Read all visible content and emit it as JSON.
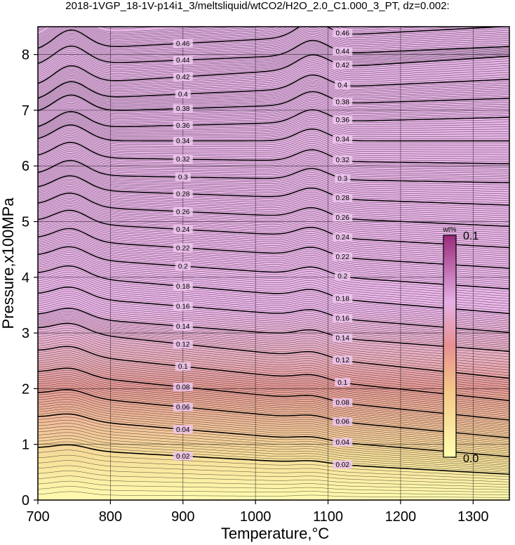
{
  "title": "2018-1VGP_18-1V-p14i1_3/meltsliquid/wtCO2/H2O_2.0_C1.000_3_PT, dz=0.002:",
  "chart_data": {
    "type": "heatmap",
    "xlabel": "Temperature,°C",
    "ylabel": "Pressure,x100MPa",
    "xlim": [
      700,
      1350
    ],
    "ylim": [
      0,
      8.5
    ],
    "xticks": [
      700,
      800,
      900,
      1000,
      1100,
      1200,
      1300
    ],
    "yticks": [
      0,
      1,
      2,
      3,
      4,
      5,
      6,
      7,
      8
    ],
    "grid": true,
    "contour_interval": 0.002,
    "major_contour_interval": 0.02,
    "colorbar": {
      "title": "wt%",
      "min": 0.0,
      "max": 0.1,
      "min_label": "0.0",
      "max_label": "0.1",
      "colors": [
        "#ffffb0",
        "#f5c888",
        "#e89090",
        "#e5b0e5",
        "#9a2a7a"
      ]
    },
    "contour_label_T": [
      900,
      1120
    ],
    "contours": [
      {
        "level": 0.02,
        "label": "0.02",
        "P_at_900": 0.79,
        "P_at_1120": 0.63
      },
      {
        "level": 0.04,
        "label": "0.04",
        "P_at_900": 1.27,
        "P_at_1120": 1.03
      },
      {
        "level": 0.06,
        "label": "0.06",
        "P_at_900": 1.67,
        "P_at_1120": 1.4
      },
      {
        "level": 0.08,
        "label": "0.08",
        "P_at_900": 2.03,
        "P_at_1120": 1.74
      },
      {
        "level": 0.1,
        "label": "0.1",
        "P_at_900": 2.4,
        "P_at_1120": 2.1
      },
      {
        "level": 0.12,
        "label": "0.12",
        "P_at_900": 2.8,
        "P_at_1120": 2.5
      },
      {
        "level": 0.14,
        "label": "0.14",
        "P_at_900": 3.12,
        "P_at_1120": 2.9
      },
      {
        "level": 0.16,
        "label": "0.16",
        "P_at_900": 3.48,
        "P_at_1120": 3.25
      },
      {
        "level": 0.18,
        "label": "0.18",
        "P_at_900": 3.84,
        "P_at_1120": 3.6
      },
      {
        "level": 0.2,
        "label": "0.2",
        "P_at_900": 4.2,
        "P_at_1120": 4.0
      },
      {
        "level": 0.22,
        "label": "0.22",
        "P_at_900": 4.53,
        "P_at_1120": 4.35
      },
      {
        "level": 0.24,
        "label": "0.24",
        "P_at_900": 4.86,
        "P_at_1120": 4.7
      },
      {
        "level": 0.26,
        "label": "0.26",
        "P_at_900": 5.18,
        "P_at_1120": 5.05
      },
      {
        "level": 0.28,
        "label": "0.28",
        "P_at_900": 5.5,
        "P_at_1120": 5.4
      },
      {
        "level": 0.3,
        "label": "0.3",
        "P_at_900": 5.8,
        "P_at_1120": 5.75
      },
      {
        "level": 0.32,
        "label": "0.32",
        "P_at_900": 6.12,
        "P_at_1120": 6.08
      },
      {
        "level": 0.34,
        "label": "0.34",
        "P_at_900": 6.45,
        "P_at_1120": 6.45
      },
      {
        "level": 0.36,
        "label": "0.36",
        "P_at_900": 6.73,
        "P_at_1120": 6.8
      },
      {
        "level": 0.38,
        "label": "0.38",
        "P_at_900": 7.03,
        "P_at_1120": 7.12
      },
      {
        "level": 0.4,
        "label": "0.4",
        "P_at_900": 7.29,
        "P_at_1120": 7.42
      },
      {
        "level": 0.42,
        "label": "0.42",
        "P_at_900": 7.6,
        "P_at_1120": 7.78
      },
      {
        "level": 0.44,
        "label": "0.44",
        "P_at_900": 7.9,
        "P_at_1120": 8.02
      },
      {
        "level": 0.46,
        "label": "0.46",
        "P_at_900": 8.2,
        "P_at_1120": 8.35
      }
    ]
  }
}
